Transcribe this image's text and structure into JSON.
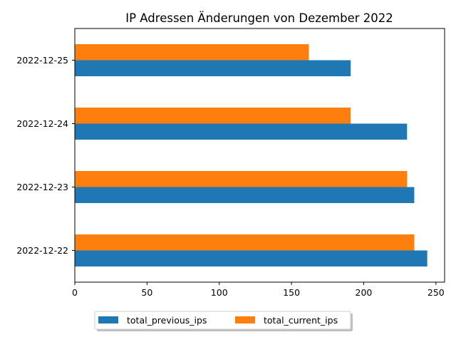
{
  "chart_data": {
    "type": "bar",
    "orientation": "horizontal",
    "title": "IP Adressen Änderungen von Dezember 2022",
    "xlabel": "",
    "ylabel": "",
    "categories": [
      "2022-12-22",
      "2022-12-23",
      "2022-12-24",
      "2022-12-25"
    ],
    "series": [
      {
        "name": "total_previous_ips",
        "color": "#1f77b4",
        "values": [
          244,
          235,
          230,
          191
        ]
      },
      {
        "name": "total_current_ips",
        "color": "#ff7f0e",
        "values": [
          235,
          230,
          191,
          162
        ]
      }
    ],
    "xlim": [
      0,
      256
    ],
    "xticks": [
      0,
      50,
      100,
      150,
      200,
      250
    ],
    "grid": false,
    "legend_position": "bottom-center"
  }
}
